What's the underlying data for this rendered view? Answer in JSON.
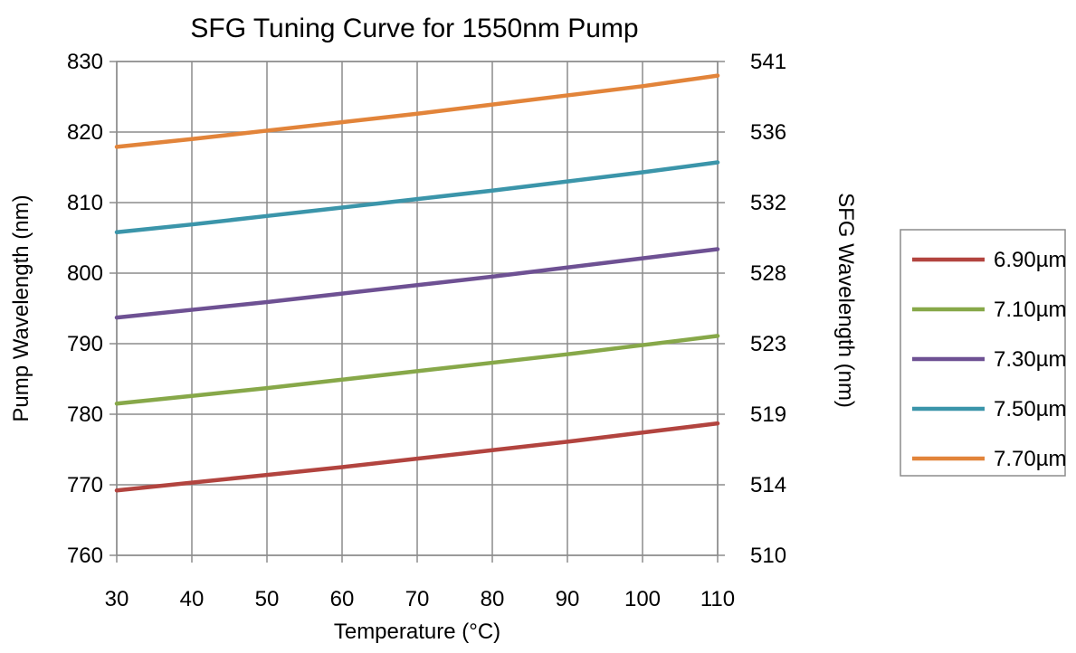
{
  "chart_data": {
    "type": "line",
    "title": "SFG Tuning Curve for 1550nm Pump",
    "xlabel": "Temperature (°C)",
    "ylabel": "Pump Wavelength (nm)",
    "y2label": "SFG Wavelength (nm)",
    "xlim": [
      30,
      110
    ],
    "ylim": [
      760,
      830
    ],
    "x_ticks": [
      30,
      40,
      50,
      60,
      70,
      80,
      90,
      100,
      110
    ],
    "y_ticks": [
      760,
      770,
      780,
      790,
      800,
      810,
      820,
      830
    ],
    "y2_ticks": [
      "510",
      "514",
      "519",
      "523",
      "528",
      "532",
      "536",
      "541"
    ],
    "grid": true,
    "legend_position": "right",
    "x": [
      30,
      40,
      50,
      60,
      70,
      80,
      90,
      100,
      110
    ],
    "series": [
      {
        "name": "6.90µm",
        "color": "#b2443f",
        "values": [
          769.2,
          770.3,
          771.4,
          772.5,
          773.7,
          774.9,
          776.1,
          777.4,
          778.7
        ]
      },
      {
        "name": "7.10µm",
        "color": "#87a849",
        "values": [
          781.5,
          782.6,
          783.7,
          784.9,
          786.1,
          787.3,
          788.5,
          789.8,
          791.1
        ]
      },
      {
        "name": "7.30µm",
        "color": "#6e5193",
        "values": [
          793.7,
          794.8,
          795.9,
          797.1,
          798.3,
          799.5,
          800.8,
          802.1,
          803.4
        ]
      },
      {
        "name": "7.50µm",
        "color": "#3b95aa",
        "values": [
          805.8,
          806.9,
          808.1,
          809.3,
          810.5,
          811.7,
          813.0,
          814.3,
          815.7
        ]
      },
      {
        "name": "7.70µm",
        "color": "#e2843a",
        "values": [
          817.9,
          819.0,
          820.2,
          821.4,
          822.6,
          823.9,
          825.2,
          826.5,
          828.0
        ]
      }
    ]
  }
}
